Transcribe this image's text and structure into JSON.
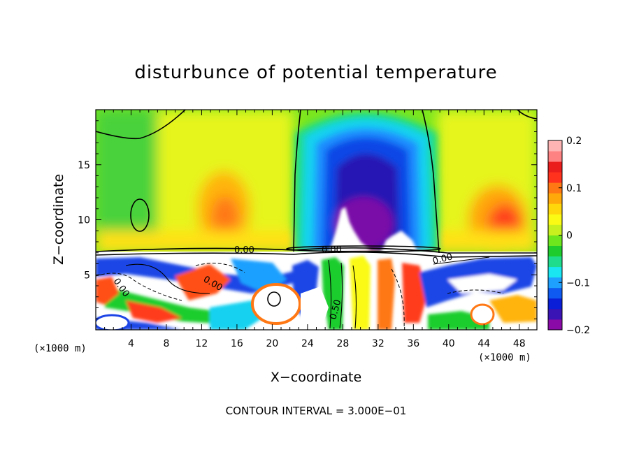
{
  "chart_data": {
    "type": "heatmap",
    "title": "disturbunce of potential temperature",
    "xlabel": "X−coordinate",
    "ylabel": "Z−coordinate",
    "x_unit": "(×1000 m)",
    "y_unit": "(×1000 m)",
    "xlim": [
      0,
      50
    ],
    "ylim": [
      0,
      20
    ],
    "x_ticks": [
      4,
      8,
      12,
      16,
      20,
      24,
      28,
      32,
      36,
      40,
      44,
      48
    ],
    "y_ticks": [
      5,
      10,
      15
    ],
    "x_tick_labels": [
      "4",
      "8",
      "12",
      "16",
      "20",
      "24",
      "28",
      "32",
      "36",
      "40",
      "44",
      "48"
    ],
    "y_tick_labels": [
      "5",
      "10",
      "15"
    ],
    "colorbar": {
      "min": -0.2,
      "max": 0.2,
      "ticks": [
        0.2,
        0.1,
        0,
        -0.1,
        -0.2
      ],
      "tick_labels": [
        "0.2",
        "0.1",
        "0",
        "−0.1",
        "−0.2"
      ],
      "colors": [
        "#8a0aa8",
        "#3a14b4",
        "#0a1ed8",
        "#0f5af0",
        "#1ea0ff",
        "#19e6f0",
        "#1edc8c",
        "#1ecd2d",
        "#6ee61e",
        "#c8f01e",
        "#fafa14",
        "#ffd70a",
        "#ffaa0a",
        "#ff7814",
        "#ff321e",
        "#eb1e1e",
        "#ff8282",
        "#ffb4b4"
      ]
    },
    "contour_labels": [
      "0.00",
      "0.00",
      "0.00",
      "0.00",
      "0.00",
      "0.50"
    ],
    "contour_interval_text": "CONTOUR INTERVAL = 3.000E−01"
  }
}
